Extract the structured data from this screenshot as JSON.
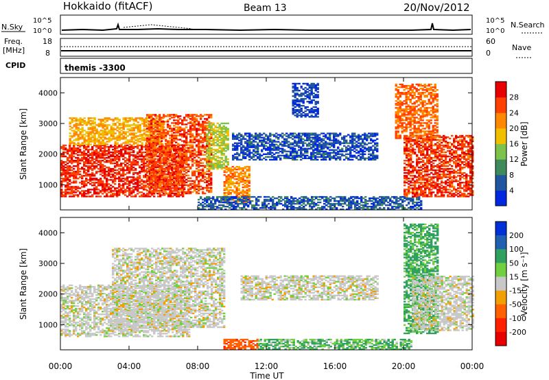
{
  "header": {
    "site": "Hokkaido (fitACF)",
    "beam": "Beam 13",
    "date": "20/Nov/2012"
  },
  "strips": {
    "nsky_label": "N.Sky",
    "nsky_ticks": [
      "10^5",
      "10^0"
    ],
    "nsearch_label": "N.Search",
    "freq_label": [
      "Freq.",
      "[MHz]"
    ],
    "freq_ticks": [
      "18",
      "8"
    ],
    "nave_label": "Nave",
    "nave_ticks": [
      "60",
      "0"
    ],
    "cpid_label": "CPID",
    "cpid_value": "themis -3300"
  },
  "chart_data": [
    {
      "type": "heatmap",
      "name": "power",
      "xlabel": "",
      "ylabel": "Slant Range [km]",
      "x_ticks": [
        "00:00",
        "04:00",
        "08:00",
        "12:00",
        "16:00",
        "20:00",
        "00:00"
      ],
      "xlim_hours": [
        0,
        24
      ],
      "y_ticks": [
        1000,
        2000,
        3000,
        4000
      ],
      "ylim_km": [
        180,
        4500
      ],
      "colorbar": {
        "label": "Power [dB]",
        "ticks": [
          4,
          8,
          12,
          16,
          20,
          24,
          28
        ],
        "range": [
          0,
          32
        ],
        "colors": [
          "#0028e0",
          "#2255a0",
          "#3f8a5a",
          "#7dc24a",
          "#f0c000",
          "#ff8800",
          "#ff4000",
          "#e80000"
        ]
      },
      "regions": [
        {
          "t": [
            0,
            7.2
          ],
          "r": [
            600,
            2300
          ],
          "level": 28
        },
        {
          "t": [
            0.5,
            6.0
          ],
          "r": [
            2300,
            3200
          ],
          "level": 20
        },
        {
          "t": [
            5.0,
            8.8
          ],
          "r": [
            700,
            3300
          ],
          "level": 26
        },
        {
          "t": [
            8.5,
            9.8
          ],
          "r": [
            1500,
            3000
          ],
          "level": 16
        },
        {
          "t": [
            9.5,
            11.0
          ],
          "r": [
            400,
            1600
          ],
          "level": 22
        },
        {
          "t": [
            8.0,
            21.0
          ],
          "r": [
            180,
            600
          ],
          "level": 6
        },
        {
          "t": [
            10.0,
            18.5
          ],
          "r": [
            1800,
            2700
          ],
          "level": 5
        },
        {
          "t": [
            13.5,
            15.0
          ],
          "r": [
            3200,
            4300
          ],
          "level": 4
        },
        {
          "t": [
            20.0,
            24.0
          ],
          "r": [
            600,
            2600
          ],
          "level": 27
        },
        {
          "t": [
            19.5,
            22.0
          ],
          "r": [
            2500,
            4300
          ],
          "level": 24
        }
      ]
    },
    {
      "type": "heatmap",
      "name": "velocity",
      "xlabel": "Time UT",
      "ylabel": "Slant Range [km]",
      "x_ticks": [
        "00:00",
        "04:00",
        "08:00",
        "12:00",
        "16:00",
        "20:00",
        "00:00"
      ],
      "xlim_hours": [
        0,
        24
      ],
      "y_ticks": [
        1000,
        2000,
        3000,
        4000
      ],
      "ylim_km": [
        180,
        4500
      ],
      "colorbar": {
        "label": "Velocity [m s⁻¹]",
        "ticks": [
          200,
          100,
          50,
          15,
          -15,
          -50,
          -100,
          -200
        ],
        "colors": [
          "#0030d8",
          "#2060b0",
          "#30a060",
          "#70d040",
          "#c8c8c8",
          "#f0a000",
          "#ff6000",
          "#ff2000",
          "#e80000"
        ]
      },
      "regions": [
        {
          "t": [
            0,
            7.5
          ],
          "r": [
            600,
            2300
          ],
          "value": 0
        },
        {
          "t": [
            3.0,
            9.5
          ],
          "r": [
            900,
            3500
          ],
          "value": 0
        },
        {
          "t": [
            9.5,
            11.5
          ],
          "r": [
            180,
            500
          ],
          "value": -60
        },
        {
          "t": [
            11.5,
            20.5
          ],
          "r": [
            180,
            500
          ],
          "value": 30
        },
        {
          "t": [
            10.5,
            18.5
          ],
          "r": [
            1800,
            2600
          ],
          "value": 0
        },
        {
          "t": [
            20.0,
            22.0
          ],
          "r": [
            700,
            4300
          ],
          "value": 40
        },
        {
          "t": [
            20.5,
            24.0
          ],
          "r": [
            800,
            2600
          ],
          "value": 0
        }
      ]
    }
  ]
}
